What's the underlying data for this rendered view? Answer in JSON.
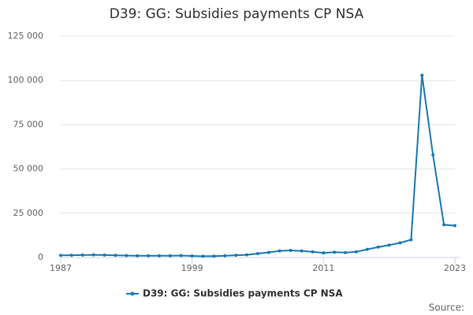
{
  "chart_data": {
    "type": "line",
    "title": "D39: GG: Subsidies payments CP NSA",
    "x": [
      1987,
      1988,
      1989,
      1990,
      1991,
      1992,
      1993,
      1994,
      1995,
      1996,
      1997,
      1998,
      1999,
      2000,
      2001,
      2002,
      2003,
      2004,
      2005,
      2006,
      2007,
      2008,
      2009,
      2010,
      2011,
      2012,
      2013,
      2014,
      2015,
      2016,
      2017,
      2018,
      2019,
      2020,
      2021,
      2022,
      2023
    ],
    "series": [
      {
        "name": "D39: GG: Subsidies payments CP NSA",
        "color": "#1a7ab5",
        "values": [
          1200,
          1300,
          1400,
          1500,
          1400,
          1200,
          1100,
          1000,
          1000,
          1000,
          1000,
          1100,
          900,
          700,
          800,
          1000,
          1300,
          1500,
          2200,
          2900,
          3700,
          4000,
          3700,
          3200,
          2600,
          3000,
          2800,
          3200,
          4600,
          5900,
          7000,
          8300,
          10000,
          103000,
          58000,
          18500,
          18000
        ]
      }
    ],
    "xlim": [
      1987,
      2023
    ],
    "xticks": [
      1987,
      1999,
      2011,
      2023
    ],
    "ylim": [
      0,
      125000
    ],
    "yticks": [
      0,
      {
        "value": 25000,
        "label": "25 000"
      },
      {
        "value": 50000,
        "label": "50 000"
      },
      {
        "value": 75000,
        "label": "75 000"
      },
      {
        "value": 100000,
        "label": "100 000"
      },
      {
        "value": 125000,
        "label": "125 000"
      }
    ],
    "grid": true,
    "source": "Source:"
  }
}
